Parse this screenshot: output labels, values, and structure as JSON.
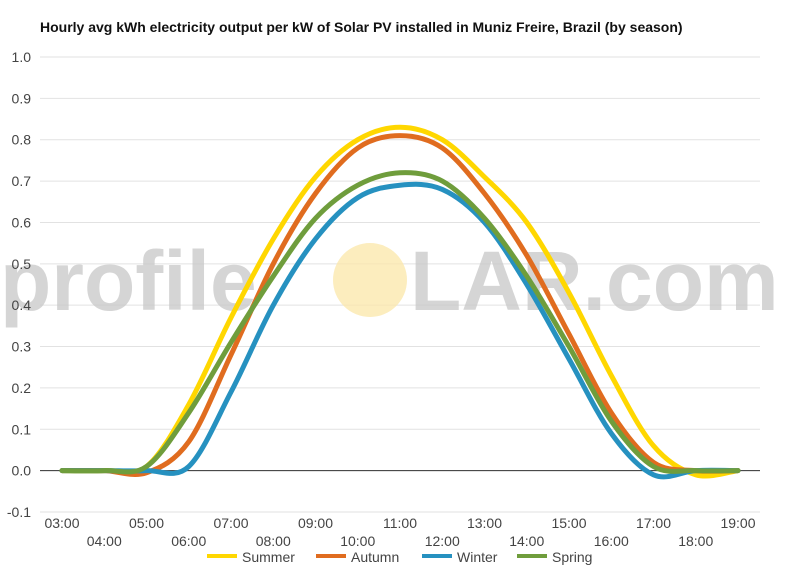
{
  "chart_data": {
    "type": "line",
    "title": "Hourly avg kWh electricity output per kW of Solar PV installed in Muniz Freire, Brazil (by season)",
    "xlabel": "",
    "ylabel": "",
    "x": [
      "03:00",
      "04:00",
      "05:00",
      "06:00",
      "07:00",
      "08:00",
      "09:00",
      "10:00",
      "11:00",
      "12:00",
      "13:00",
      "14:00",
      "15:00",
      "16:00",
      "17:00",
      "18:00",
      "19:00"
    ],
    "ylim": [
      -0.1,
      1.0
    ],
    "yticks": [
      "-0.1",
      "0.0",
      "0.1",
      "0.2",
      "0.3",
      "0.4",
      "0.5",
      "0.6",
      "0.7",
      "0.8",
      "0.9",
      "1.0"
    ],
    "grid": true,
    "legend_position": "bottom",
    "series": [
      {
        "name": "Summer",
        "color": "#ffd700",
        "values": [
          0,
          0,
          0.01,
          0.16,
          0.37,
          0.56,
          0.71,
          0.8,
          0.83,
          0.8,
          0.71,
          0.6,
          0.43,
          0.23,
          0.06,
          -0.01,
          0
        ]
      },
      {
        "name": "Autumn",
        "color": "#e06c1f",
        "values": [
          0,
          0,
          -0.005,
          0.07,
          0.28,
          0.5,
          0.67,
          0.78,
          0.81,
          0.78,
          0.67,
          0.52,
          0.33,
          0.14,
          0.02,
          0,
          0
        ]
      },
      {
        "name": "Winter",
        "color": "#2691c0",
        "values": [
          0,
          0,
          0,
          0.01,
          0.19,
          0.4,
          0.56,
          0.66,
          0.69,
          0.68,
          0.6,
          0.45,
          0.27,
          0.09,
          -0.01,
          0,
          0
        ]
      },
      {
        "name": "Spring",
        "color": "#6f9d3c",
        "values": [
          0,
          0,
          0.01,
          0.14,
          0.31,
          0.47,
          0.61,
          0.69,
          0.72,
          0.7,
          0.61,
          0.47,
          0.3,
          0.12,
          0.01,
          0,
          0
        ]
      }
    ]
  },
  "watermark": {
    "text_left": "profile",
    "text_right": "LAR.com",
    "text_gray": "#c8c8c8",
    "sun_color": "#fbe7a8"
  }
}
